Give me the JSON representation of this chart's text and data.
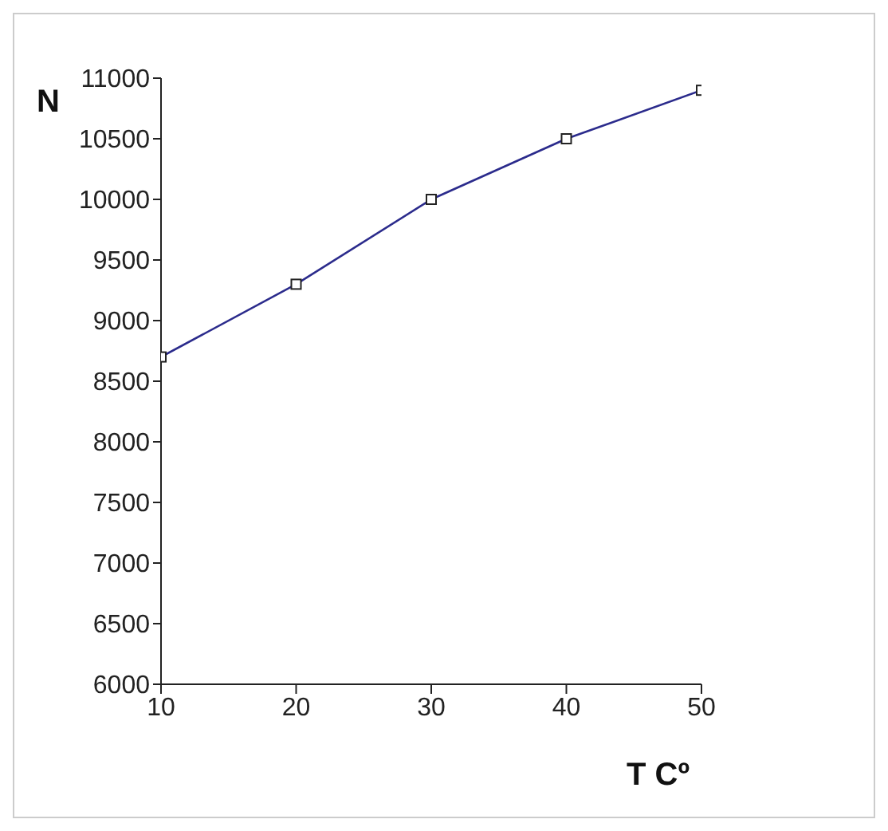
{
  "chart_data": {
    "type": "line",
    "xlabel": "T Cº",
    "ylabel": "N",
    "x": [
      10,
      20,
      30,
      40,
      50
    ],
    "series": [
      {
        "color": "#2b2b8c",
        "values": [
          8700,
          9300,
          10000,
          10500,
          10900
        ]
      }
    ],
    "xlim": [
      10,
      50
    ],
    "xticks": [
      10,
      20,
      30,
      40,
      50
    ],
    "ylim": [
      6000,
      11000
    ],
    "yticks": [
      6000,
      6500,
      7000,
      7500,
      8000,
      8500,
      9000,
      9500,
      10000,
      10500,
      11000
    ],
    "grid": false,
    "legend": false,
    "marker": "square",
    "line_style": "solid"
  }
}
